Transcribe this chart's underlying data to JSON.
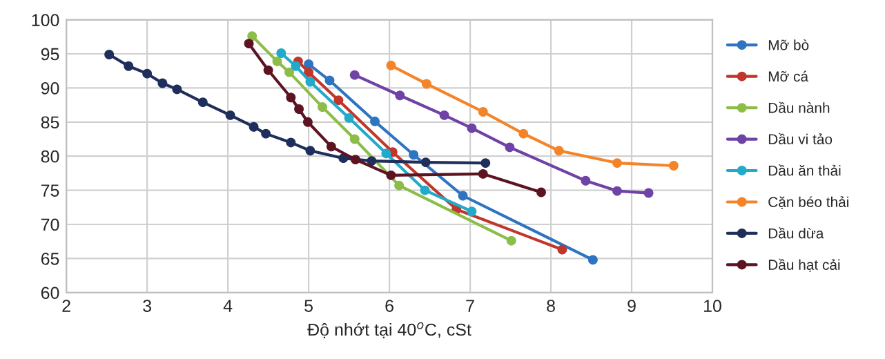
{
  "chart_data": {
    "type": "line",
    "xlabel": "Độ nhớt tại 40$^{o}$C, cSt",
    "xlim": [
      2,
      10
    ],
    "xticks": [
      2,
      3,
      4,
      5,
      6,
      7,
      8,
      9,
      10
    ],
    "ylim": [
      60,
      100
    ],
    "yticks": [
      60,
      65,
      70,
      75,
      80,
      85,
      90,
      95,
      100
    ],
    "grid": true,
    "legend": "right",
    "marker": "circle",
    "line_style": "solid",
    "series": [
      {
        "name": "Mỡ bò",
        "color": "#2f74c0",
        "x": [
          5.0,
          5.26,
          5.82,
          6.3,
          6.91,
          8.52
        ],
        "values": [
          93.5,
          91.1,
          85.1,
          80.2,
          74.2,
          64.8
        ]
      },
      {
        "name": "Mỡ cá",
        "color": "#c0362c",
        "x": [
          4.87,
          5.0,
          5.37,
          6.04,
          6.83,
          8.14
        ],
        "values": [
          93.9,
          92.3,
          88.2,
          80.6,
          72.2,
          66.3
        ]
      },
      {
        "name": "Dầu nành",
        "color": "#8cbd48",
        "x": [
          4.3,
          4.61,
          4.76,
          5.17,
          5.57,
          6.12,
          7.51
        ],
        "values": [
          97.6,
          93.9,
          92.3,
          87.2,
          82.5,
          75.7,
          67.6
        ]
      },
      {
        "name": "Dầu vi tảo",
        "color": "#6f42a6",
        "x": [
          5.57,
          6.13,
          6.68,
          7.02,
          7.49,
          8.43,
          8.82,
          9.21
        ],
        "values": [
          91.9,
          88.9,
          86.0,
          84.1,
          81.3,
          76.4,
          74.9,
          74.6
        ]
      },
      {
        "name": "Dầu ăn thải",
        "color": "#22aacb",
        "x": [
          4.66,
          4.84,
          5.02,
          5.5,
          5.96,
          6.44,
          7.02
        ],
        "values": [
          95.1,
          93.2,
          90.9,
          85.6,
          80.4,
          75.0,
          71.9
        ]
      },
      {
        "name": "Cặn béo thải",
        "color": "#f4842a",
        "x": [
          6.02,
          6.46,
          7.16,
          7.66,
          8.1,
          8.82,
          9.52
        ],
        "values": [
          93.3,
          90.6,
          86.5,
          83.3,
          80.8,
          79.0,
          78.6
        ]
      },
      {
        "name": "Dầu dừa",
        "color": "#1f2f5c",
        "x": [
          2.53,
          2.77,
          3.0,
          3.19,
          3.37,
          3.69,
          4.03,
          4.32,
          4.47,
          4.78,
          5.02,
          5.43,
          5.78,
          6.45,
          7.19
        ],
        "values": [
          94.9,
          93.2,
          92.1,
          90.7,
          89.8,
          87.9,
          86.0,
          84.3,
          83.3,
          82.0,
          80.8,
          79.7,
          79.3,
          79.1,
          79.0
        ]
      },
      {
        "name": "Dầu hạt cải",
        "color": "#5c1322",
        "x": [
          4.26,
          4.5,
          4.78,
          4.88,
          4.99,
          5.28,
          5.58,
          6.02,
          7.16,
          7.88
        ],
        "values": [
          96.5,
          92.6,
          88.6,
          86.9,
          85.0,
          81.4,
          79.5,
          77.2,
          77.4,
          74.7
        ]
      }
    ]
  }
}
